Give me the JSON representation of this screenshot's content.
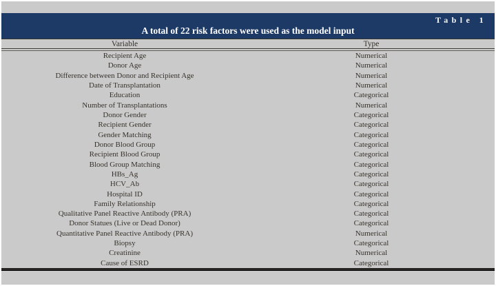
{
  "figure": {
    "label": "Table 1",
    "caption": "A total of 22 risk factors were used as the model input",
    "band_color": "#1d3a66",
    "background_color": "#cacaca"
  },
  "table": {
    "columns": [
      "Variable",
      "Type"
    ],
    "rows": [
      {
        "variable": "Recipient Age",
        "type": "Numerical"
      },
      {
        "variable": "Donor Age",
        "type": "Numerical"
      },
      {
        "variable": "Difference between Donor and Recipient Age",
        "type": "Numerical"
      },
      {
        "variable": "Date of Transplantation",
        "type": "Numerical"
      },
      {
        "variable": "Education",
        "type": "Categorical"
      },
      {
        "variable": "Number of Transplantations",
        "type": "Numerical"
      },
      {
        "variable": "Donor Gender",
        "type": "Categorical"
      },
      {
        "variable": "Recipient Gender",
        "type": "Categorical"
      },
      {
        "variable": "Gender Matching",
        "type": "Categorical"
      },
      {
        "variable": "Donor Blood Group",
        "type": "Categorical"
      },
      {
        "variable": "Recipient Blood Group",
        "type": "Categorical"
      },
      {
        "variable": "Blood Group Matching",
        "type": "Categorical"
      },
      {
        "variable": "HBs_Ag",
        "type": "Categorical"
      },
      {
        "variable": "HCV_Ab",
        "type": "Categorical"
      },
      {
        "variable": "Hospital ID",
        "type": "Categorical"
      },
      {
        "variable": "Family Relationship",
        "type": "Categorical"
      },
      {
        "variable": "Qualitative Panel Reactive Antibody (PRA)",
        "type": "Categorical"
      },
      {
        "variable": "Donor Statues (Live or Dead Donor)",
        "type": "Categorical"
      },
      {
        "variable": "Quantitative Panel Reactive Antibody (PRA)",
        "type": "Numerical"
      },
      {
        "variable": "Biopsy",
        "type": "Categorical"
      },
      {
        "variable": "Creatinine",
        "type": "Numerical"
      },
      {
        "variable": "Cause of ESRD",
        "type": "Categorical"
      }
    ]
  }
}
